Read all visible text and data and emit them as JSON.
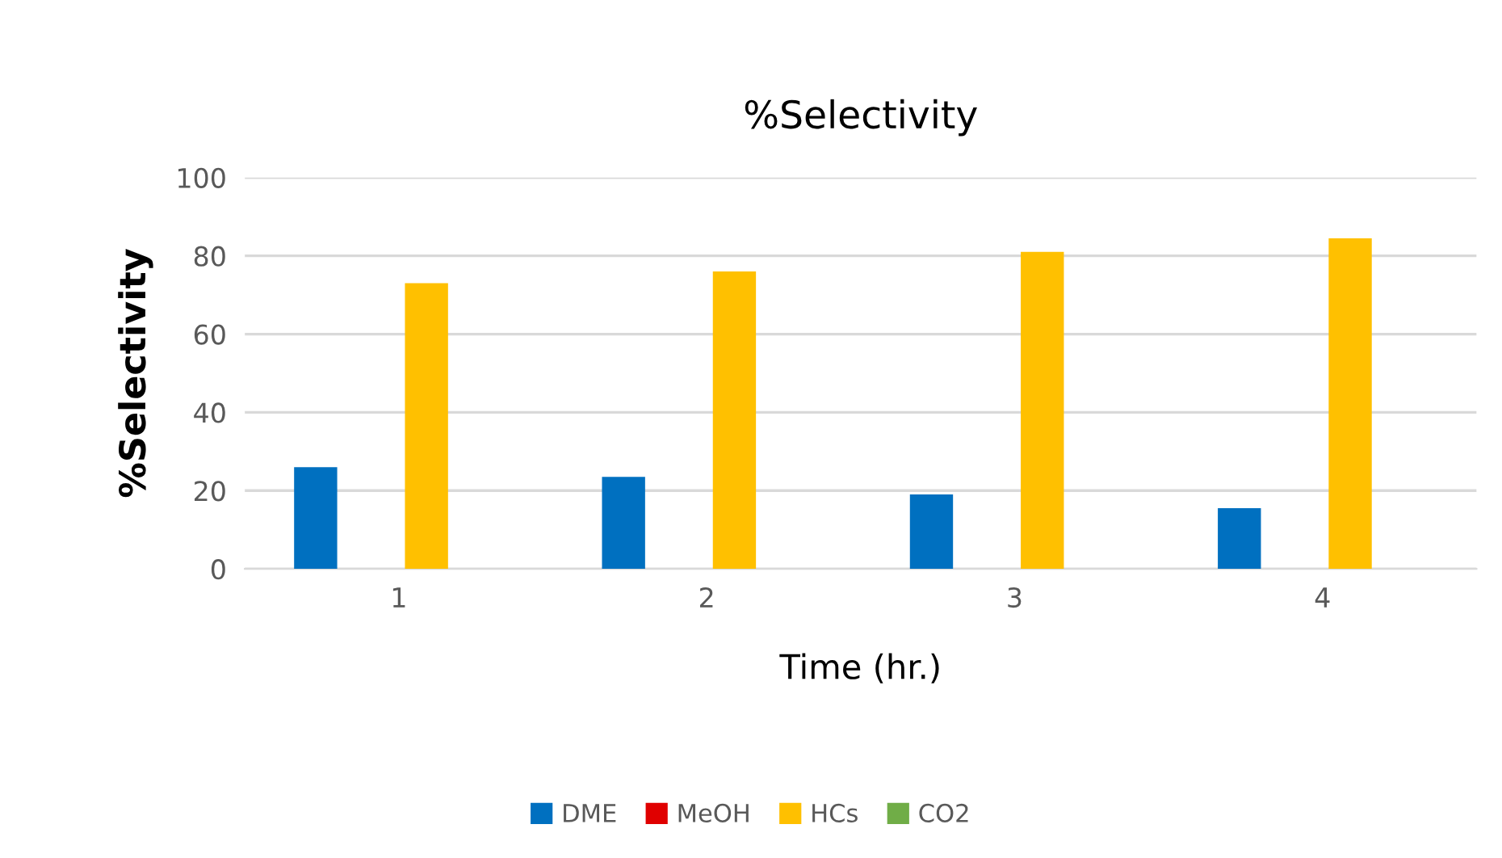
{
  "chart_data": {
    "type": "bar",
    "title": "%Selectivity",
    "xlabel": "Time (hr.)",
    "ylabel": "%Selectivity",
    "categories": [
      "1",
      "2",
      "3",
      "4"
    ],
    "series": [
      {
        "name": "DME",
        "color": "#0070c0",
        "values": [
          26,
          23.5,
          19,
          15.5
        ]
      },
      {
        "name": "MeOH",
        "color": "#e00000",
        "values": [
          0,
          0,
          0,
          0
        ]
      },
      {
        "name": "HCs",
        "color": "#ffc000",
        "values": [
          73,
          76,
          81,
          84.5
        ]
      },
      {
        "name": "CO2",
        "color": "#70ad47",
        "values": [
          0,
          0,
          0,
          0
        ]
      }
    ],
    "ylim": [
      0,
      100
    ],
    "yticks": [
      0,
      20,
      40,
      60,
      80,
      100
    ],
    "grid": "y",
    "legend": "bottom"
  }
}
